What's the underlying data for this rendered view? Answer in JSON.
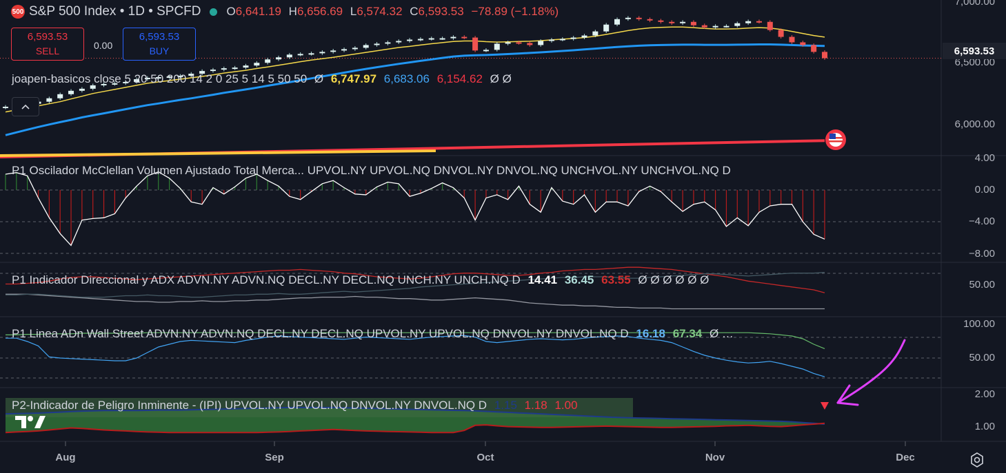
{
  "header": {
    "badge": "500",
    "symbol_title": "S&P 500 Index • 1D • SPCFD",
    "open_label": "O",
    "open": "6,641.19",
    "high_label": "H",
    "high": "6,656.69",
    "low_label": "L",
    "low": "6,574.32",
    "close_label": "C",
    "close": "6,593.53",
    "change": "−78.89 (−1.18%)"
  },
  "trade": {
    "sell_price": "6,593.53",
    "sell_label": "SELL",
    "spread": "0.00",
    "buy_price": "6,593.53",
    "buy_label": "BUY"
  },
  "overlay_legend": {
    "name": "joapen-basicos close 5 20 50 200 14 2 0 25 5 14 5 50 50",
    "null1": "Ø",
    "v1": "6,747.97",
    "v2": "6,683.06",
    "v3": "6,154.62",
    "null2": "Ø Ø"
  },
  "current_price_tag": "6,593.53",
  "price_axis": {
    "labels": [
      "7,000.00",
      "6,500.00",
      "6,000.00"
    ]
  },
  "panes": {
    "mcclellan": {
      "title": "P1 Oscilador McClellan Volumen Ajustado Total Merca...",
      "inputs": "UPVOL.NY UPVOL.NQ DNVOL.NY DNVOL.NQ UNCHVOL.NY UNCHVOL.NQ D",
      "axis": [
        "4.00",
        "0.00",
        "−4.00",
        "−8.00"
      ]
    },
    "adx": {
      "title": "P1 Indicador Direccional y ADX ADVN.NY ADVN.NQ DECL.NY DECL.NQ UNCH.NY UNCH.NQ D",
      "v1": "14.41",
      "v2": "36.45",
      "v3": "63.55",
      "nulls": "Ø Ø Ø Ø Ø Ø",
      "axis": [
        "50.00"
      ]
    },
    "adline": {
      "title": "P1 Linea ADn Wall Street ADVN.NY ADVN.NQ DECL.NY DECL.NQ UPVOL.NY UPVOL.NQ DNVOL.NY DNVOL.NQ D",
      "v1": "16.18",
      "v2": "67.34",
      "tail": "Ø …",
      "axis": [
        "100.00",
        "50.00"
      ]
    },
    "ipi": {
      "title": "P2-Indicador de Peligro Inminente - (IPI) UPVOL.NY UPVOL.NQ DNVOL.NY DNVOL.NQ D",
      "v1": "1.15",
      "v2": "1.18",
      "v3": "1.00",
      "axis": [
        "2.00",
        "1.00"
      ]
    }
  },
  "time_axis": {
    "labels": [
      "Aug",
      "Sep",
      "Oct",
      "Nov",
      "Dec"
    ]
  },
  "icons": {
    "collapse": "chevron-up-icon",
    "settings": "gear-icon",
    "logo": "tradingview-logo",
    "flag": "us-flag-icon",
    "signal": "down-triangle-marker",
    "annotation": "hand-drawn-arrow"
  },
  "colors": {
    "background": "#131722",
    "up": "#26a69a",
    "down": "#ef5350",
    "ma_yellow": "#f5d94b",
    "ma_blue": "#2196f3",
    "ma_red": "#f23645",
    "ma_orange": "#ffc83d",
    "ipi_fill": "#2e6b35",
    "annotation": "#e040fb"
  },
  "chart_data": [
    {
      "type": "candlestick",
      "x_ticks": [
        "Aug",
        "Sep",
        "Oct",
        "Nov",
        "Dec"
      ],
      "y_ticks": [
        "7,000.00",
        "6,500.00",
        "6,000.00"
      ],
      "ylim": [
        5880,
        7000
      ],
      "close_series": [
        6238,
        6245,
        6260,
        6275,
        6300,
        6330,
        6355,
        6370,
        6395,
        6405,
        6410,
        6420,
        6440,
        6450,
        6455,
        6460,
        6465,
        6480,
        6500,
        6510,
        6520,
        6525,
        6540,
        6560,
        6585,
        6600,
        6620,
        6625,
        6630,
        6640,
        6650,
        6660,
        6670,
        6690,
        6700,
        6710,
        6720,
        6730,
        6735,
        6740,
        6740,
        6750,
        6745,
        6650,
        6655,
        6700,
        6710,
        6705,
        6690,
        6720,
        6730,
        6735,
        6745,
        6760,
        6790,
        6840,
        6880,
        6890,
        6880,
        6870,
        6860,
        6850,
        6860,
        6835,
        6820,
        6830,
        6830,
        6850,
        6865,
        6860,
        6800,
        6750,
        6710,
        6690,
        6640,
        6594
      ],
      "ma_yellow": [
        6200,
        6215,
        6230,
        6245,
        6260,
        6275,
        6295,
        6315,
        6335,
        6350,
        6365,
        6380,
        6395,
        6410,
        6420,
        6430,
        6440,
        6450,
        6460,
        6472,
        6485,
        6495,
        6505,
        6518,
        6530,
        6542,
        6555,
        6568,
        6580,
        6590,
        6600,
        6612,
        6624,
        6636,
        6648,
        6660,
        6672,
        6680,
        6690,
        6700,
        6708,
        6716,
        6720,
        6720,
        6715,
        6712,
        6714,
        6716,
        6718,
        6722,
        6728,
        6733,
        6738,
        6745,
        6755,
        6768,
        6782,
        6796,
        6808,
        6816,
        6820,
        6822,
        6822,
        6818,
        6812,
        6808,
        6808,
        6810,
        6815,
        6818,
        6815,
        6805,
        6790,
        6775,
        6760,
        6748
      ],
      "ma_blue": [
        6030,
        6050,
        6070,
        6090,
        6108,
        6125,
        6142,
        6160,
        6175,
        6190,
        6205,
        6220,
        6235,
        6250,
        6262,
        6275,
        6288,
        6300,
        6313,
        6326,
        6340,
        6352,
        6365,
        6378,
        6392,
        6405,
        6418,
        6432,
        6446,
        6460,
        6474,
        6488,
        6502,
        6515,
        6528,
        6540,
        6552,
        6563,
        6574,
        6585,
        6596,
        6606,
        6612,
        6615,
        6617,
        6620,
        6624,
        6628,
        6632,
        6637,
        6642,
        6647,
        6652,
        6658,
        6664,
        6670,
        6676,
        6681,
        6685,
        6688,
        6690,
        6692,
        6693,
        6693,
        6692,
        6692,
        6692,
        6693,
        6694,
        6695,
        6695,
        6693,
        6690,
        6687,
        6685,
        6683
      ],
      "ma_red": [
        5870,
        5990
      ],
      "ma_orange": [
        5880,
        5915
      ]
    },
    {
      "type": "bar+line",
      "name": "McClellan",
      "ylim": [
        -8,
        4
      ],
      "values": [
        2.0,
        2.2,
        1.8,
        -1.0,
        -3.5,
        -5.5,
        -7.0,
        -3.8,
        -3.6,
        -3.5,
        -3.0,
        -1.0,
        0.5,
        1.8,
        2.3,
        1.5,
        0.2,
        -1.5,
        -1.8,
        0.3,
        -0.5,
        0.4,
        1.5,
        2.0,
        1.2,
        0.5,
        -0.8,
        -1.2,
        -0.2,
        0.8,
        1.2,
        0.3,
        -0.5,
        -0.6,
        0.4,
        1.0,
        0.8,
        -0.8,
        -0.4,
        0.2,
        0.9,
        0.3,
        -1.0,
        -3.8,
        -1.0,
        -0.6,
        -1.2,
        0.5,
        -1.8,
        -2.8,
        0.3,
        -1.4,
        -1.8,
        -0.6,
        -2.8,
        -1.5,
        -1.5,
        -2.0,
        -0.2,
        0.5,
        -0.2,
        -1.5,
        -2.7,
        -1.8,
        -1.5,
        -2.5,
        -4.6,
        -3.5,
        -4.5,
        -2.8,
        -2.0,
        -1.8,
        -1.8,
        -4.0,
        -5.6,
        -6.2
      ]
    },
    {
      "type": "line",
      "name": "ADX",
      "ylim": [
        5,
        75
      ],
      "series": [
        {
          "values": [
            34,
            34,
            34,
            33,
            32,
            31,
            30,
            29,
            28,
            27,
            26,
            25,
            24,
            24,
            23,
            23,
            24,
            24,
            25,
            24,
            24,
            25,
            25,
            26,
            26,
            27,
            28,
            29,
            29,
            30,
            30,
            30,
            31,
            30,
            30,
            29,
            28,
            28,
            27,
            26,
            26,
            27,
            28,
            29,
            28,
            27,
            26,
            24,
            22,
            21,
            20,
            19,
            19,
            18,
            18,
            17,
            16,
            16,
            15,
            15,
            15,
            14,
            14,
            14,
            14,
            14,
            14,
            14,
            14,
            14,
            14,
            14,
            14,
            14,
            14,
            14
          ]
        },
        {
          "values": [
            48,
            48,
            49,
            50,
            52,
            55,
            57,
            58,
            58,
            57,
            56,
            55,
            54,
            55,
            56,
            57,
            58,
            59,
            60,
            61,
            62,
            63,
            64,
            65,
            66,
            67,
            67,
            68,
            67,
            66,
            65,
            63,
            62,
            60,
            58,
            57,
            56,
            55,
            56,
            58,
            60,
            62,
            63,
            63,
            62,
            61,
            60,
            60,
            61,
            63,
            64,
            66,
            67,
            68,
            68,
            69,
            70,
            71,
            71,
            70,
            69,
            68,
            66,
            64,
            62,
            60,
            58,
            55,
            52,
            50,
            48,
            46,
            44,
            42,
            40,
            36
          ]
        },
        {
          "values": [
            33,
            33,
            34,
            34,
            33,
            32,
            31,
            30,
            30,
            30,
            31,
            32,
            32,
            33,
            32,
            32,
            31,
            30,
            30,
            31,
            32,
            33,
            33,
            34,
            34,
            35,
            34,
            34,
            35,
            36,
            37,
            38,
            37,
            38,
            39,
            40,
            41,
            42,
            44,
            45,
            46,
            47,
            48,
            49,
            50,
            51,
            52,
            53,
            54,
            55,
            56,
            57,
            57,
            58,
            58,
            58,
            57,
            56,
            56,
            57,
            58,
            59,
            60,
            61,
            62,
            62,
            61,
            60,
            59,
            60,
            61,
            62,
            63,
            63,
            63,
            64
          ]
        }
      ]
    },
    {
      "type": "line",
      "name": "AD Line",
      "ylim": [
        0,
        120
      ],
      "series": [
        {
          "values": [
            86,
            86,
            80,
            72,
            52,
            50,
            49,
            48,
            47,
            46,
            45,
            45,
            50,
            60,
            70,
            75,
            80,
            82,
            81,
            80,
            79,
            78,
            82,
            85,
            88,
            90,
            89,
            88,
            87,
            86,
            85,
            84,
            86,
            88,
            87,
            86,
            85,
            84,
            86,
            88,
            89,
            90,
            91,
            88,
            80,
            78,
            80,
            82,
            84,
            85,
            84,
            83,
            84,
            86,
            88,
            89,
            90,
            89,
            86,
            84,
            82,
            78,
            70,
            62,
            55,
            50,
            46,
            43,
            41,
            42,
            44,
            40,
            35,
            30,
            22,
            16
          ]
        },
        {
          "values": [
            92,
            92,
            93,
            93,
            94,
            94,
            94,
            95,
            95,
            95,
            95,
            95,
            95,
            96,
            96,
            96,
            96,
            96,
            96,
            96,
            96,
            96,
            96,
            96,
            96,
            96,
            96,
            96,
            96,
            96,
            96,
            96,
            96,
            96,
            96,
            96,
            96,
            96,
            96,
            96,
            96,
            96,
            96,
            96,
            96,
            96,
            96,
            96,
            96,
            96,
            96,
            96,
            96,
            96,
            96,
            96,
            96,
            96,
            96,
            96,
            96,
            96,
            96,
            96,
            96,
            96,
            96,
            96,
            96,
            95,
            94,
            92,
            90,
            85,
            75,
            67
          ]
        }
      ]
    },
    {
      "type": "area",
      "name": "IPI",
      "ylim": [
        0.5,
        2.5
      ],
      "series": [
        {
          "values": [
            1.55,
            1.56,
            1.57,
            1.58,
            1.6,
            1.62,
            1.64,
            1.66,
            1.67,
            1.68,
            1.68,
            1.68,
            1.68,
            1.69,
            1.7,
            1.7,
            1.7,
            1.71,
            1.72,
            1.73,
            1.74,
            1.75,
            1.76,
            1.77,
            1.78,
            1.79,
            1.8,
            1.8,
            1.8,
            1.8,
            1.8,
            1.79,
            1.78,
            1.77,
            1.76,
            1.75,
            1.74,
            1.73,
            1.72,
            1.71,
            1.7,
            1.69,
            1.68,
            1.67,
            1.65,
            1.63,
            1.61,
            1.59,
            1.57,
            1.55,
            1.53,
            1.51,
            1.49,
            1.47,
            1.45,
            1.43,
            1.41,
            1.4,
            1.39,
            1.38,
            1.37,
            1.36,
            1.35,
            1.34,
            1.33,
            1.32,
            1.31,
            1.3,
            1.29,
            1.28,
            1.27,
            1.26,
            1.24,
            1.21,
            1.18,
            1.15
          ]
        },
        {
          "values": [
            0.82,
            0.84,
            0.86,
            0.88,
            0.92,
            0.96,
            1.0,
            0.98,
            0.95,
            0.92,
            0.9,
            0.88,
            0.86,
            0.84,
            0.83,
            0.82,
            0.82,
            0.82,
            0.82,
            0.82,
            0.82,
            0.82,
            0.82,
            0.82,
            0.83,
            0.84,
            0.86,
            0.88,
            0.9,
            0.92,
            0.94,
            0.92,
            0.9,
            0.88,
            0.87,
            0.86,
            0.85,
            0.84,
            0.83,
            0.82,
            0.82,
            0.82,
            0.9,
            1.1,
            1.12,
            1.08,
            1.05,
            1.04,
            1.03,
            1.02,
            1.02,
            1.03,
            1.04,
            1.05,
            1.06,
            1.07,
            1.06,
            1.05,
            1.04,
            1.03,
            1.02,
            1.02,
            1.03,
            1.04,
            1.05,
            1.06,
            1.08,
            1.09,
            1.1,
            1.08,
            1.06,
            1.05,
            1.08,
            1.12,
            1.15,
            1.18
          ]
        }
      ]
    }
  ]
}
